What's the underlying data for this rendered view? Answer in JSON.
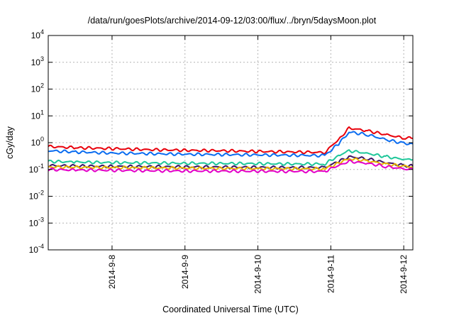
{
  "chart_data": {
    "type": "line",
    "title": "/data/run/goesPlots/archive/2014-09-12/03:00/flux/../bryn/5daysMoon.plot",
    "xlabel": "Coordinated Universal Time (UTC)",
    "ylabel": "cGy/day",
    "yscale": "log",
    "ylim": [
      0.0001,
      10000
    ],
    "xlim": [
      "2014-09-07T03:00",
      "2014-09-12T03:00"
    ],
    "yticks": [
      {
        "base": "10",
        "exp": "-4",
        "value": 0.0001
      },
      {
        "base": "10",
        "exp": "-3",
        "value": 0.001
      },
      {
        "base": "10",
        "exp": "-2",
        "value": 0.01
      },
      {
        "base": "10",
        "exp": "-1",
        "value": 0.1
      },
      {
        "base": "10",
        "exp": "0",
        "value": 1
      },
      {
        "base": "10",
        "exp": "1",
        "value": 10
      },
      {
        "base": "10",
        "exp": "2",
        "value": 100
      },
      {
        "base": "10",
        "exp": "3",
        "value": 1000
      },
      {
        "base": "10",
        "exp": "4",
        "value": 10000
      }
    ],
    "xticks": [
      {
        "label": "2014-9-8",
        "value": "2014-09-08T00:00"
      },
      {
        "label": "2014-9-9",
        "value": "2014-09-09T00:00"
      },
      {
        "label": "2014-9-10",
        "value": "2014-09-10T00:00"
      },
      {
        "label": "2014-9-11",
        "value": "2014-09-11T00:00"
      },
      {
        "label": "2014-9-12",
        "value": "2014-09-12T00:00"
      }
    ],
    "grid": true,
    "legend": "none",
    "x": [
      "2014-09-07T03:00",
      "2014-09-07T12:00",
      "2014-09-08T00:00",
      "2014-09-08T12:00",
      "2014-09-09T00:00",
      "2014-09-09T12:00",
      "2014-09-10T00:00",
      "2014-09-10T12:00",
      "2014-09-10T22:00",
      "2014-09-11T03:00",
      "2014-09-11T06:00",
      "2014-09-11T12:00",
      "2014-09-11T18:00",
      "2014-09-12T00:00",
      "2014-09-12T03:00"
    ],
    "series": [
      {
        "color": "#e8000b",
        "values": [
          0.72,
          0.65,
          0.6,
          0.55,
          0.52,
          0.5,
          0.47,
          0.45,
          0.43,
          1.5,
          3.5,
          2.8,
          2.0,
          1.5,
          1.45
        ]
      },
      {
        "color": "#0a6cf0",
        "values": [
          0.5,
          0.45,
          0.41,
          0.39,
          0.37,
          0.36,
          0.35,
          0.34,
          0.33,
          1.0,
          2.5,
          2.0,
          1.3,
          0.95,
          0.9
        ]
      },
      {
        "color": "#1fc79a",
        "values": [
          0.2,
          0.19,
          0.18,
          0.175,
          0.17,
          0.168,
          0.165,
          0.16,
          0.16,
          0.35,
          0.5,
          0.4,
          0.3,
          0.24,
          0.23
        ]
      },
      {
        "color": "#3d1466",
        "values": [
          0.14,
          0.135,
          0.13,
          0.128,
          0.125,
          0.123,
          0.12,
          0.118,
          0.118,
          0.21,
          0.3,
          0.25,
          0.18,
          0.14,
          0.135
        ]
      },
      {
        "color": "#e8b400",
        "values": [
          0.125,
          0.12,
          0.118,
          0.115,
          0.112,
          0.11,
          0.108,
          0.106,
          0.105,
          0.18,
          0.25,
          0.21,
          0.16,
          0.13,
          0.125
        ]
      },
      {
        "color": "#e300c8",
        "values": [
          0.1,
          0.095,
          0.093,
          0.09,
          0.088,
          0.087,
          0.086,
          0.085,
          0.085,
          0.15,
          0.2,
          0.17,
          0.13,
          0.105,
          0.1
        ]
      }
    ]
  }
}
